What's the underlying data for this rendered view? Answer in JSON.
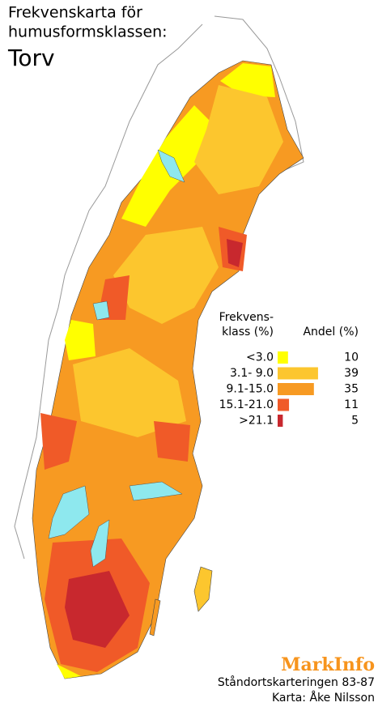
{
  "header": {
    "title_lines": [
      "Frekvenskarta för",
      "humusformsklassen:"
    ],
    "subtitle": "Torv"
  },
  "legend": {
    "class_header": [
      "Frekvens-",
      "klass (%)"
    ],
    "share_header": "Andel (%)",
    "classes": [
      {
        "label": "<3.0",
        "color": "#ffff00",
        "value": 10
      },
      {
        "label": "3.1-  9.0",
        "color": "#fcc62e",
        "value": 39
      },
      {
        "label": "9.1-15.0",
        "color": "#f79a22",
        "value": 35
      },
      {
        "label": "15.1-21.0",
        "color": "#f05a28",
        "value": 11
      },
      {
        "label": ">21.1",
        "color": "#c8282e",
        "value": 5
      }
    ]
  },
  "footer": {
    "brand": "MarkInfo",
    "credits": [
      "Ståndortskarteringen 83-87",
      "Karta: Åke Nilsson"
    ]
  }
}
